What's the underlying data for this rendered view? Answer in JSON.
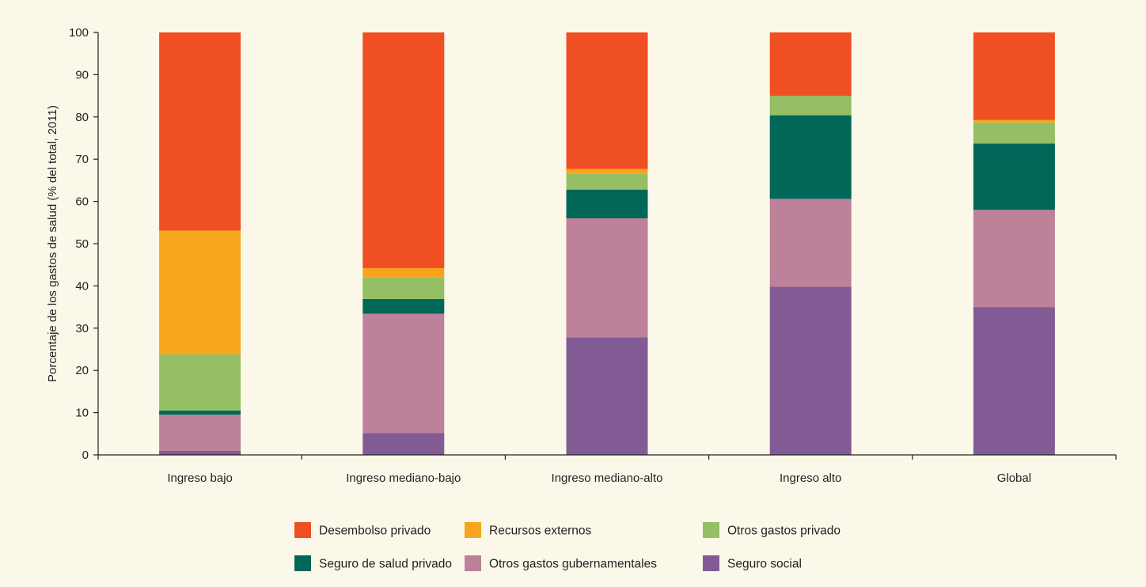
{
  "chart_data": {
    "type": "bar",
    "stacked": true,
    "ylabel": "Porcentaje de los gastos de salud (% del total, 2011)",
    "ylim": [
      0,
      100
    ],
    "yticks": [
      0,
      10,
      20,
      30,
      40,
      50,
      60,
      70,
      80,
      90,
      100
    ],
    "grid": false,
    "legend_position": "bottom",
    "categories": [
      "Ingreso bajo",
      "Ingreso mediano-bajo",
      "Ingreso mediano-alto",
      "Ingreso alto",
      "Global"
    ],
    "series": [
      {
        "name": "Seguro social",
        "color": "#835b94",
        "values": [
          1,
          5.2,
          27.8,
          39.8,
          35
        ]
      },
      {
        "name": "Otros gastos gubernamentales",
        "color": "#bd8299",
        "values": [
          8.5,
          28.2,
          28.2,
          20.8,
          23
        ]
      },
      {
        "name": "Seguro de salud privado",
        "color": "#006759",
        "values": [
          1,
          3.5,
          6.8,
          19.8,
          15.7
        ]
      },
      {
        "name": "Otros gastos  privado",
        "color": "#94bf65",
        "values": [
          13.3,
          5.1,
          3.8,
          4.6,
          5
        ]
      },
      {
        "name": "Recursos externos",
        "color": "#f7a51c",
        "values": [
          29.3,
          2.2,
          1.1,
          0,
          0.6
        ]
      },
      {
        "name": "Desembolso privado",
        "color": "#f04e23",
        "values": [
          46.9,
          55.8,
          32.3,
          15,
          20.7
        ]
      }
    ],
    "legend_order": [
      "Desembolso privado",
      "Recursos externos",
      "Otros gastos  privado",
      "Seguro de salud privado",
      "Otros gastos gubernamentales",
      "Seguro social"
    ]
  }
}
